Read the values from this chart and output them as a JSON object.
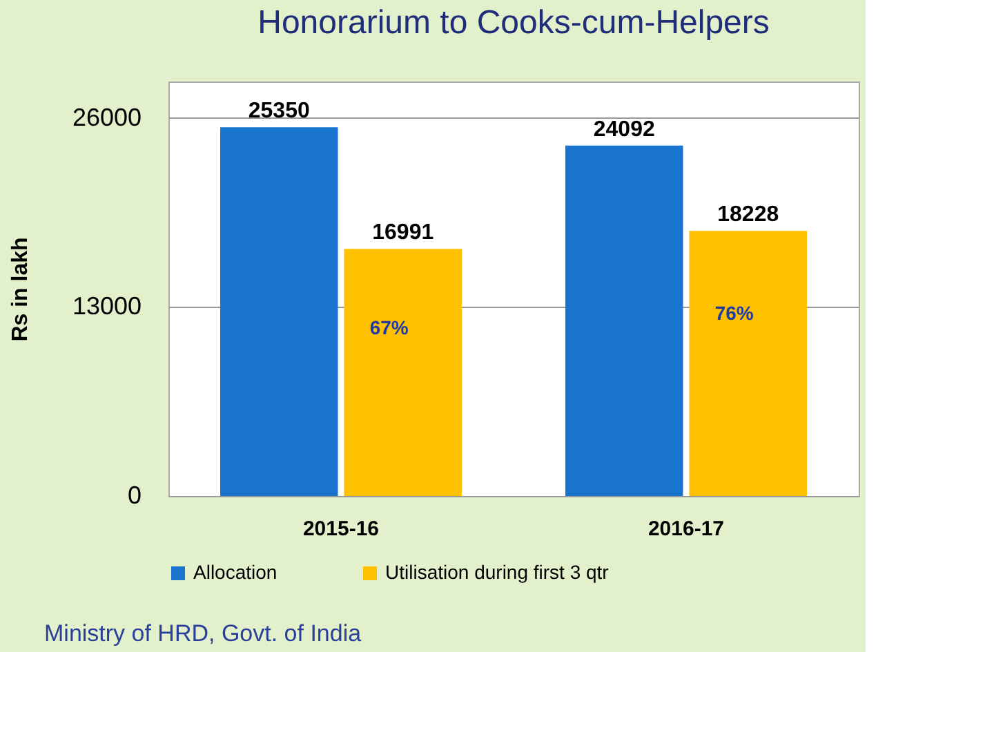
{
  "chart_data": {
    "type": "bar",
    "title": "Honorarium to Cooks-cum-Helpers",
    "ylabel": "Rs in lakh",
    "categories": [
      "2015-16",
      "2016-17"
    ],
    "series": [
      {
        "name": "Allocation",
        "color": "#1874cd",
        "values": [
          25350,
          24092
        ]
      },
      {
        "name": "Utilisation during first 3 qtr",
        "color": "#ffc000",
        "values": [
          16991,
          18228
        ]
      }
    ],
    "ylim": [
      0,
      28500
    ],
    "yticks": [
      0,
      13000,
      26000
    ],
    "grid": "y",
    "legend": "bottom",
    "data_labels": true,
    "annotations": [
      {
        "text": "67%",
        "x": "2015-16",
        "y": 11500
      },
      {
        "text": "76%",
        "x": "2016-17",
        "y": 12500
      },
      "Ministry of HRD, Govt. of India"
    ]
  }
}
